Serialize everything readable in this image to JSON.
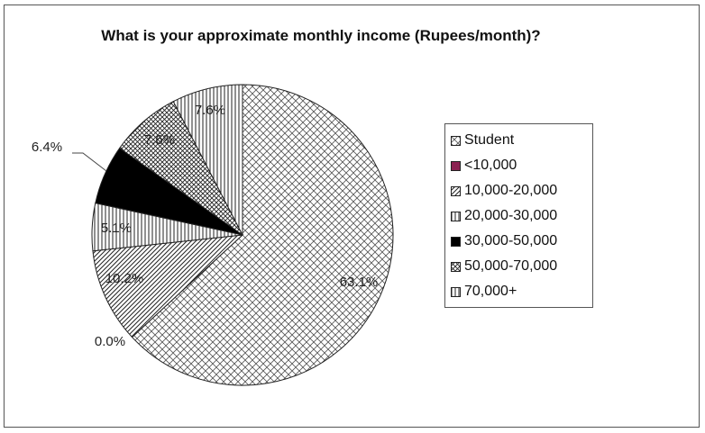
{
  "chart_data": {
    "type": "pie",
    "title": "What is your approximate monthly income (Rupees/month)?",
    "legend_position": "right",
    "slices": [
      {
        "name": "Student",
        "value": 63.1,
        "label": "63.1%",
        "pattern": "brick",
        "color": "#ffffff"
      },
      {
        "name": "<10,000",
        "value": 0.0,
        "label": "0.0%",
        "pattern": "solid",
        "color": "#8b2252"
      },
      {
        "name": "10,000-20,000",
        "value": 10.2,
        "label": "10.2%",
        "pattern": "diagonal",
        "color": "#ffffff"
      },
      {
        "name": "20,000-30,000",
        "value": 5.1,
        "label": "5.1%",
        "pattern": "vertical",
        "color": "#ffffff"
      },
      {
        "name": "30,000-50,000",
        "value": 6.4,
        "label": "6.4%",
        "pattern": "black",
        "color": "#000000"
      },
      {
        "name": "50,000-70,000",
        "value": 7.6,
        "label": "7.6%",
        "pattern": "crosshatch",
        "color": "#ffffff"
      },
      {
        "name": "70,000+",
        "value": 7.6,
        "label": "7.6%",
        "pattern": "vertical",
        "color": "#ffffff"
      }
    ]
  }
}
